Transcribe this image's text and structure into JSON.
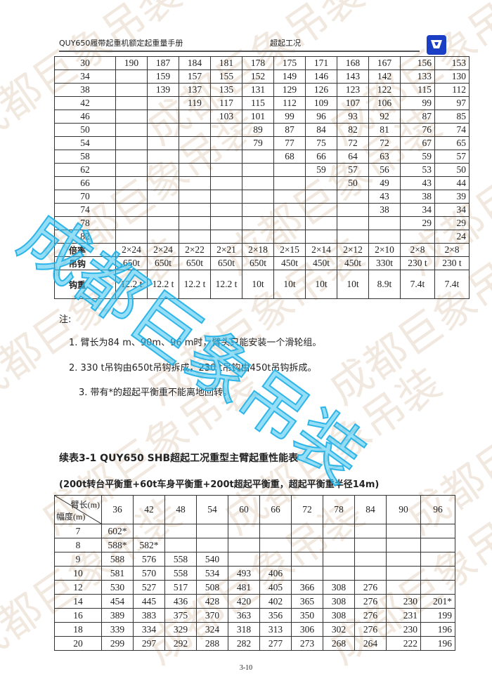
{
  "header": {
    "left": "QUY650履带起重机额定起重量手册",
    "center": "超起工况",
    "logo": "xcmg-logo"
  },
  "watermark": {
    "background": "成都巨象吊装",
    "overlay": "成都巨象吊装"
  },
  "table1": {
    "rows": [
      [
        "30",
        "190",
        "187",
        "184",
        "181",
        "178",
        "175",
        "171",
        "168",
        "167",
        "156",
        "153"
      ],
      [
        "34",
        "",
        "159",
        "157",
        "155",
        "152",
        "149",
        "146",
        "143",
        "142",
        "133",
        "130"
      ],
      [
        "38",
        "",
        "139",
        "137",
        "135",
        "131",
        "129",
        "126",
        "123",
        "122",
        "115",
        "112"
      ],
      [
        "42",
        "",
        "",
        "119",
        "117",
        "115",
        "112",
        "109",
        "107",
        "106",
        "99",
        "97"
      ],
      [
        "46",
        "",
        "",
        "",
        "103",
        "101",
        "99",
        "96",
        "93",
        "92",
        "87",
        "85"
      ],
      [
        "50",
        "",
        "",
        "",
        "",
        "89",
        "87",
        "84",
        "82",
        "81",
        "76",
        "74"
      ],
      [
        "54",
        "",
        "",
        "",
        "",
        "79",
        "77",
        "75",
        "72",
        "72",
        "67",
        "65"
      ],
      [
        "58",
        "",
        "",
        "",
        "",
        "",
        "68",
        "66",
        "64",
        "63",
        "59",
        "57"
      ],
      [
        "62",
        "",
        "",
        "",
        "",
        "",
        "",
        "59",
        "57",
        "56",
        "53",
        "50"
      ],
      [
        "66",
        "",
        "",
        "",
        "",
        "",
        "",
        "",
        "50",
        "49",
        "43",
        "44"
      ],
      [
        "70",
        "",
        "",
        "",
        "",
        "",
        "",
        "",
        "",
        "43",
        "38",
        "39"
      ],
      [
        "74",
        "",
        "",
        "",
        "",
        "",
        "",
        "",
        "",
        "38",
        "34",
        "34"
      ],
      [
        "78",
        "",
        "",
        "",
        "",
        "",
        "",
        "",
        "",
        "",
        "29",
        "29"
      ],
      [
        "82",
        "",
        "",
        "",
        "",
        "",
        "",
        "",
        "",
        "",
        "",
        "24"
      ]
    ],
    "footer": [
      [
        "倍率",
        "2×24",
        "2×24",
        "2×22",
        "2×21",
        "2×18",
        "2×15",
        "2×14",
        "2×12",
        "2×10",
        "2×8",
        "2×8"
      ],
      [
        "吊钩",
        "650t",
        "650t",
        "650t",
        "650t",
        "650t",
        "450t",
        "450t",
        "450t",
        "330t",
        "230 t",
        "230 t"
      ],
      [
        "钩重",
        "12.2 t",
        "12.2 t",
        "12.2 t",
        "12.2 t",
        "10t",
        "10t",
        "10t",
        "10t",
        "8.9t",
        "7.4t",
        "7.4t"
      ]
    ]
  },
  "notes": {
    "label": "注:",
    "items": [
      "1. 臂长为84 m、90m、96 m时，臂头只能安装一个滑轮组。",
      "2. 330 t吊钩由650t吊钩拆成，230 t吊钩由450t吊钩拆成。",
      "3. 带有*的超起平衡重不能离地回转。"
    ]
  },
  "table2": {
    "title": "续表3-1 QUY650 SHB超起工况重型主臂起重性能表",
    "subtitle": "(200t转台平衡重+60t车身平衡重+200t超起平衡重，超起平衡重半径14m)",
    "corner_top": "臂长(m)",
    "corner_bottom": "幅度(m)",
    "columns": [
      "36",
      "42",
      "48",
      "54",
      "60",
      "66",
      "72",
      "78",
      "84",
      "90",
      "96"
    ],
    "rows": [
      [
        "7",
        "602*",
        "",
        "",
        "",
        "",
        "",
        "",
        "",
        "",
        "",
        ""
      ],
      [
        "8",
        "588*",
        "582*",
        "",
        "",
        "",
        "",
        "",
        "",
        "",
        "",
        ""
      ],
      [
        "9",
        "588",
        "576",
        "558",
        "540",
        "",
        "",
        "",
        "",
        "",
        "",
        ""
      ],
      [
        "10",
        "581",
        "570",
        "558",
        "534",
        "493",
        "406",
        "",
        "",
        "",
        "",
        ""
      ],
      [
        "12",
        "530",
        "527",
        "517",
        "508",
        "481",
        "405",
        "366",
        "308",
        "276",
        "",
        ""
      ],
      [
        "14",
        "454",
        "445",
        "436",
        "428",
        "420",
        "402",
        "365",
        "308",
        "276",
        "230",
        "201*"
      ],
      [
        "16",
        "389",
        "383",
        "375",
        "370",
        "363",
        "356",
        "350",
        "308",
        "276",
        "231",
        "199"
      ],
      [
        "18",
        "339",
        "334",
        "329",
        "324",
        "318",
        "313",
        "306",
        "302",
        "276",
        "230",
        "196"
      ],
      [
        "20",
        "299",
        "297",
        "292",
        "288",
        "282",
        "277",
        "273",
        "268",
        "264",
        "222",
        "196"
      ]
    ]
  },
  "page_number": "3-10"
}
